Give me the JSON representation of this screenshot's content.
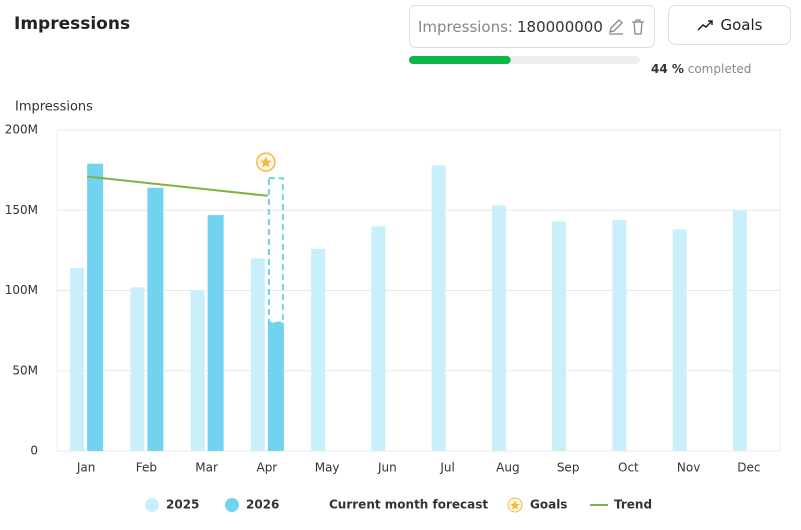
{
  "header": {
    "title": "Impressions",
    "goal_input": {
      "label": "Impressions:",
      "value": 180000000
    },
    "goals_button": "Goals",
    "progress": {
      "value": 44,
      "label": "44 %",
      "suffix": "completed",
      "color": "#0cb84a"
    }
  },
  "chart_data": {
    "type": "bar",
    "y_label": "Impressions",
    "categories": [
      "Jan",
      "Feb",
      "Mar",
      "Apr",
      "May",
      "Jun",
      "Jul",
      "Aug",
      "Sep",
      "Oct",
      "Nov",
      "Dec"
    ],
    "series": [
      {
        "name": "2025",
        "type": "bar",
        "color": "#c9effa",
        "values": [
          114000000,
          102000000,
          100000000,
          120000000,
          126000000,
          140000000,
          178000000,
          153000000,
          143000000,
          144000000,
          138000000,
          150000000
        ]
      },
      {
        "name": "2026",
        "type": "bar",
        "color": "#72d3f0",
        "values": [
          179000000,
          164000000,
          147000000,
          80000000,
          null,
          null,
          null,
          null,
          null,
          null,
          null,
          null
        ]
      },
      {
        "name": "Current month forecast",
        "type": "forecast",
        "color": "#6dd3e0",
        "values": [
          null,
          null,
          null,
          170000000,
          null,
          null,
          null,
          null,
          null,
          null,
          null,
          null
        ]
      },
      {
        "name": "Goals",
        "type": "goal",
        "color": "#f5b942",
        "values": [
          null,
          null,
          null,
          180000000,
          null,
          null,
          null,
          null,
          null,
          null,
          null,
          null
        ]
      },
      {
        "name": "Trend",
        "type": "line",
        "color": "#7cb342",
        "values": [
          171000000,
          167000000,
          163000000,
          159000000,
          null,
          null,
          null,
          null,
          null,
          null,
          null,
          null
        ]
      }
    ],
    "ylim": [
      0,
      200000000
    ],
    "yticks": [
      0,
      {
        "value": 50000000,
        "label": "50M"
      },
      {
        "value": 100000000,
        "label": "100M"
      },
      {
        "value": 150000000,
        "label": "150M"
      },
      {
        "value": 200000000,
        "label": "200M"
      }
    ],
    "grid": true
  }
}
